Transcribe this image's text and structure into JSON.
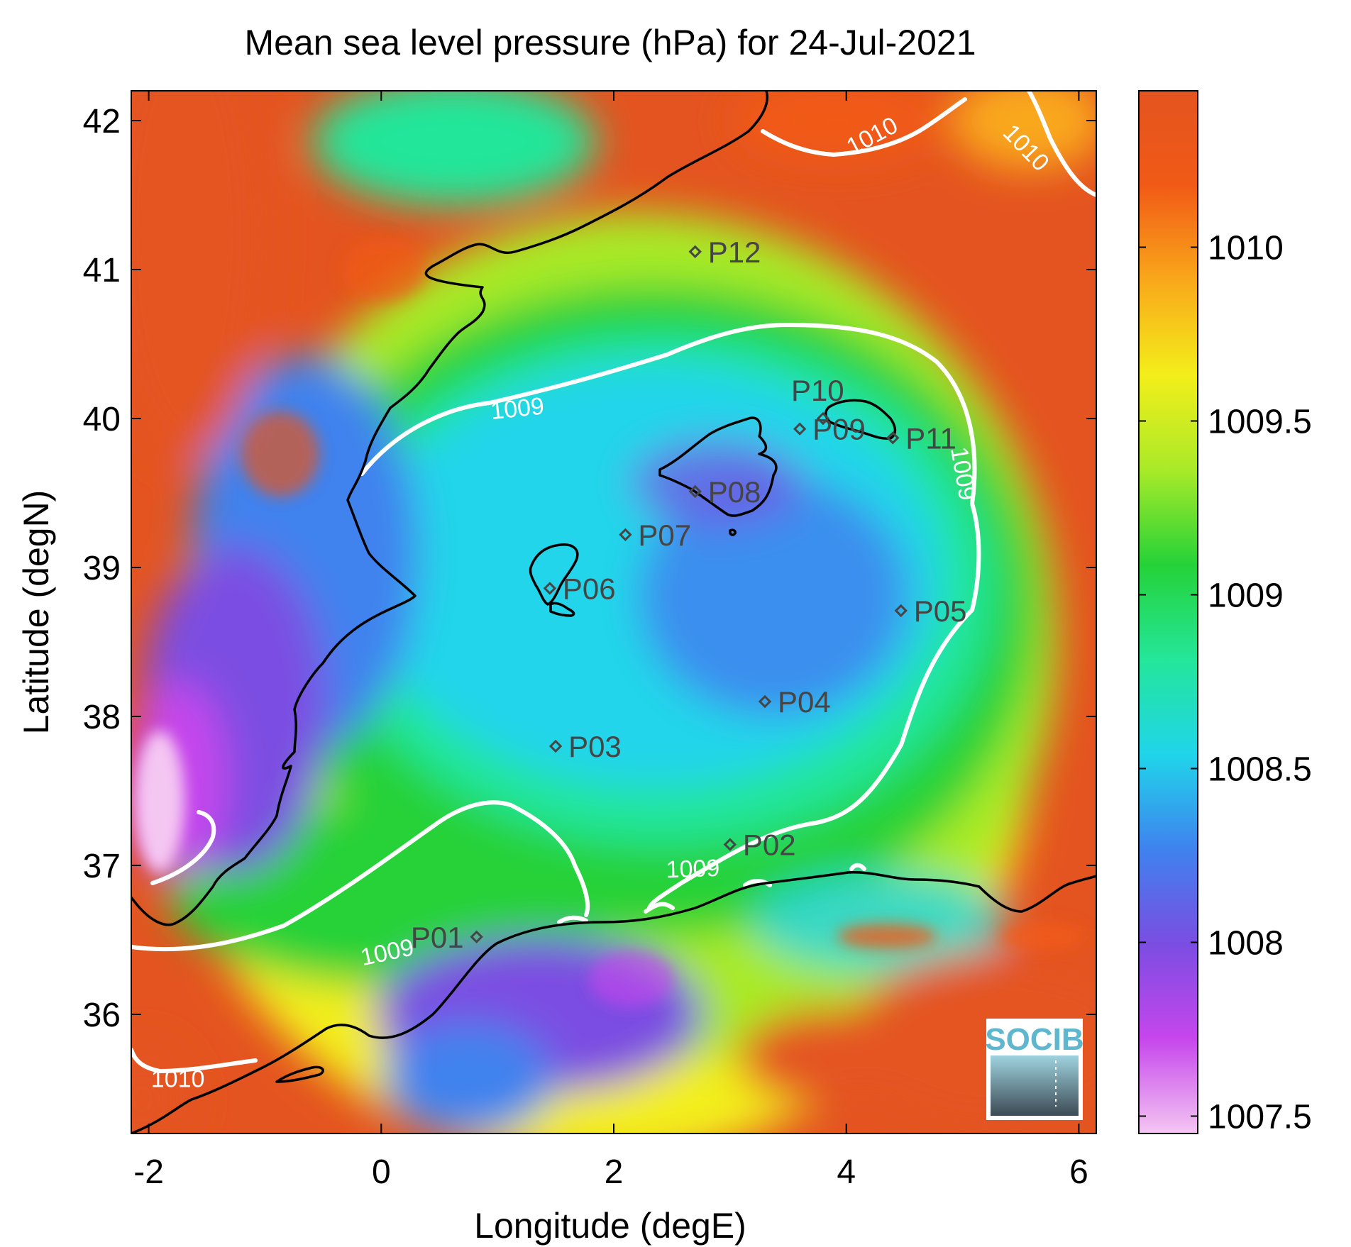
{
  "title": "Mean sea level pressure (hPa) for 24-Jul-2021",
  "xlabel": "Longitude (degE)",
  "ylabel": "Latitude (degN)",
  "x_range": [
    -2.15,
    6.15
  ],
  "y_range": [
    35.2,
    42.2
  ],
  "x_ticks": [
    {
      "value": -2,
      "label": "-2"
    },
    {
      "value": 0,
      "label": "0"
    },
    {
      "value": 2,
      "label": "2"
    },
    {
      "value": 4,
      "label": "4"
    },
    {
      "value": 6,
      "label": "6"
    }
  ],
  "y_ticks": [
    {
      "value": 36,
      "label": "36"
    },
    {
      "value": 37,
      "label": "37"
    },
    {
      "value": 38,
      "label": "38"
    },
    {
      "value": 39,
      "label": "39"
    },
    {
      "value": 40,
      "label": "40"
    },
    {
      "value": 41,
      "label": "41"
    },
    {
      "value": 42,
      "label": "42"
    }
  ],
  "colorbar": {
    "range": [
      1007.45,
      1010.45
    ],
    "ticks": [
      {
        "value": 1007.5,
        "label": "1007.5"
      },
      {
        "value": 1008,
        "label": "1008"
      },
      {
        "value": 1008.5,
        "label": "1008.5"
      },
      {
        "value": 1009,
        "label": "1009"
      },
      {
        "value": 1009.5,
        "label": "1009.5"
      },
      {
        "value": 1010,
        "label": "1010"
      }
    ],
    "colors": [
      "#f4c6f2",
      "#c646ec",
      "#7b4de2",
      "#3f82ee",
      "#20d5ea",
      "#24e69a",
      "#25d238",
      "#a9ea28",
      "#f3ee1a",
      "#f9a81a",
      "#f15a16",
      "#e45420"
    ]
  },
  "stations": [
    {
      "id": "P01",
      "label": "P01",
      "lon": 0.82,
      "lat": 36.52
    },
    {
      "id": "P02",
      "label": "P02",
      "lon": 3.0,
      "lat": 37.14
    },
    {
      "id": "P03",
      "label": "P03",
      "lon": 1.5,
      "lat": 37.8
    },
    {
      "id": "P04",
      "label": "P04",
      "lon": 3.3,
      "lat": 38.1
    },
    {
      "id": "P05",
      "label": "P05",
      "lon": 4.47,
      "lat": 38.71
    },
    {
      "id": "P06",
      "label": "P06",
      "lon": 1.45,
      "lat": 38.86
    },
    {
      "id": "P07",
      "label": "P07",
      "lon": 2.1,
      "lat": 39.22
    },
    {
      "id": "P08",
      "label": "P08",
      "lon": 2.7,
      "lat": 39.51
    },
    {
      "id": "P09",
      "label": "P09",
      "lon": 3.6,
      "lat": 39.93
    },
    {
      "id": "P10",
      "label": "P10",
      "lon": 3.8,
      "lat": 40.0
    },
    {
      "id": "P11",
      "label": "P11",
      "lon": 4.4,
      "lat": 39.87
    },
    {
      "id": "P12",
      "label": "P12",
      "lon": 2.7,
      "lat": 41.12
    }
  ],
  "contour_labels": [
    {
      "text": "1009",
      "lon": 1.17,
      "lat": 40.07,
      "angle": -6
    },
    {
      "text": "1009",
      "lon": 5.01,
      "lat": 39.63,
      "angle": 80
    },
    {
      "text": "1009",
      "lon": 2.68,
      "lat": 36.98,
      "angle": -2
    },
    {
      "text": "1009",
      "lon": 0.05,
      "lat": 36.42,
      "angle": -12
    },
    {
      "text": "1010",
      "lon": 4.22,
      "lat": 41.9,
      "angle": -28
    },
    {
      "text": "1010",
      "lon": 5.55,
      "lat": 41.82,
      "angle": 46
    },
    {
      "text": "1010",
      "lon": -1.75,
      "lat": 35.57,
      "angle": 0
    }
  ],
  "logo": {
    "text": "SOCIB"
  }
}
